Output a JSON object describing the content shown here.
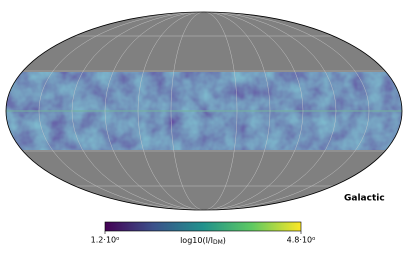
{
  "map": {
    "projection": "mollweide",
    "coordinate_label": "Galactic",
    "background_color": "#808080",
    "colorbar": {
      "label": {
        "main": "log10(I/I",
        "sub": "DM",
        "end": ")"
      },
      "lim": [
        1.2,
        4.8
      ],
      "ticks": [
        {
          "value": 1.2,
          "label": "1.2·10⁰"
        },
        {
          "value": 4.8,
          "label": "4.8·10⁰"
        }
      ],
      "colormap": [
        "#440154",
        "#3b528b",
        "#21918c",
        "#5ec962",
        "#fde725"
      ]
    }
  }
}
